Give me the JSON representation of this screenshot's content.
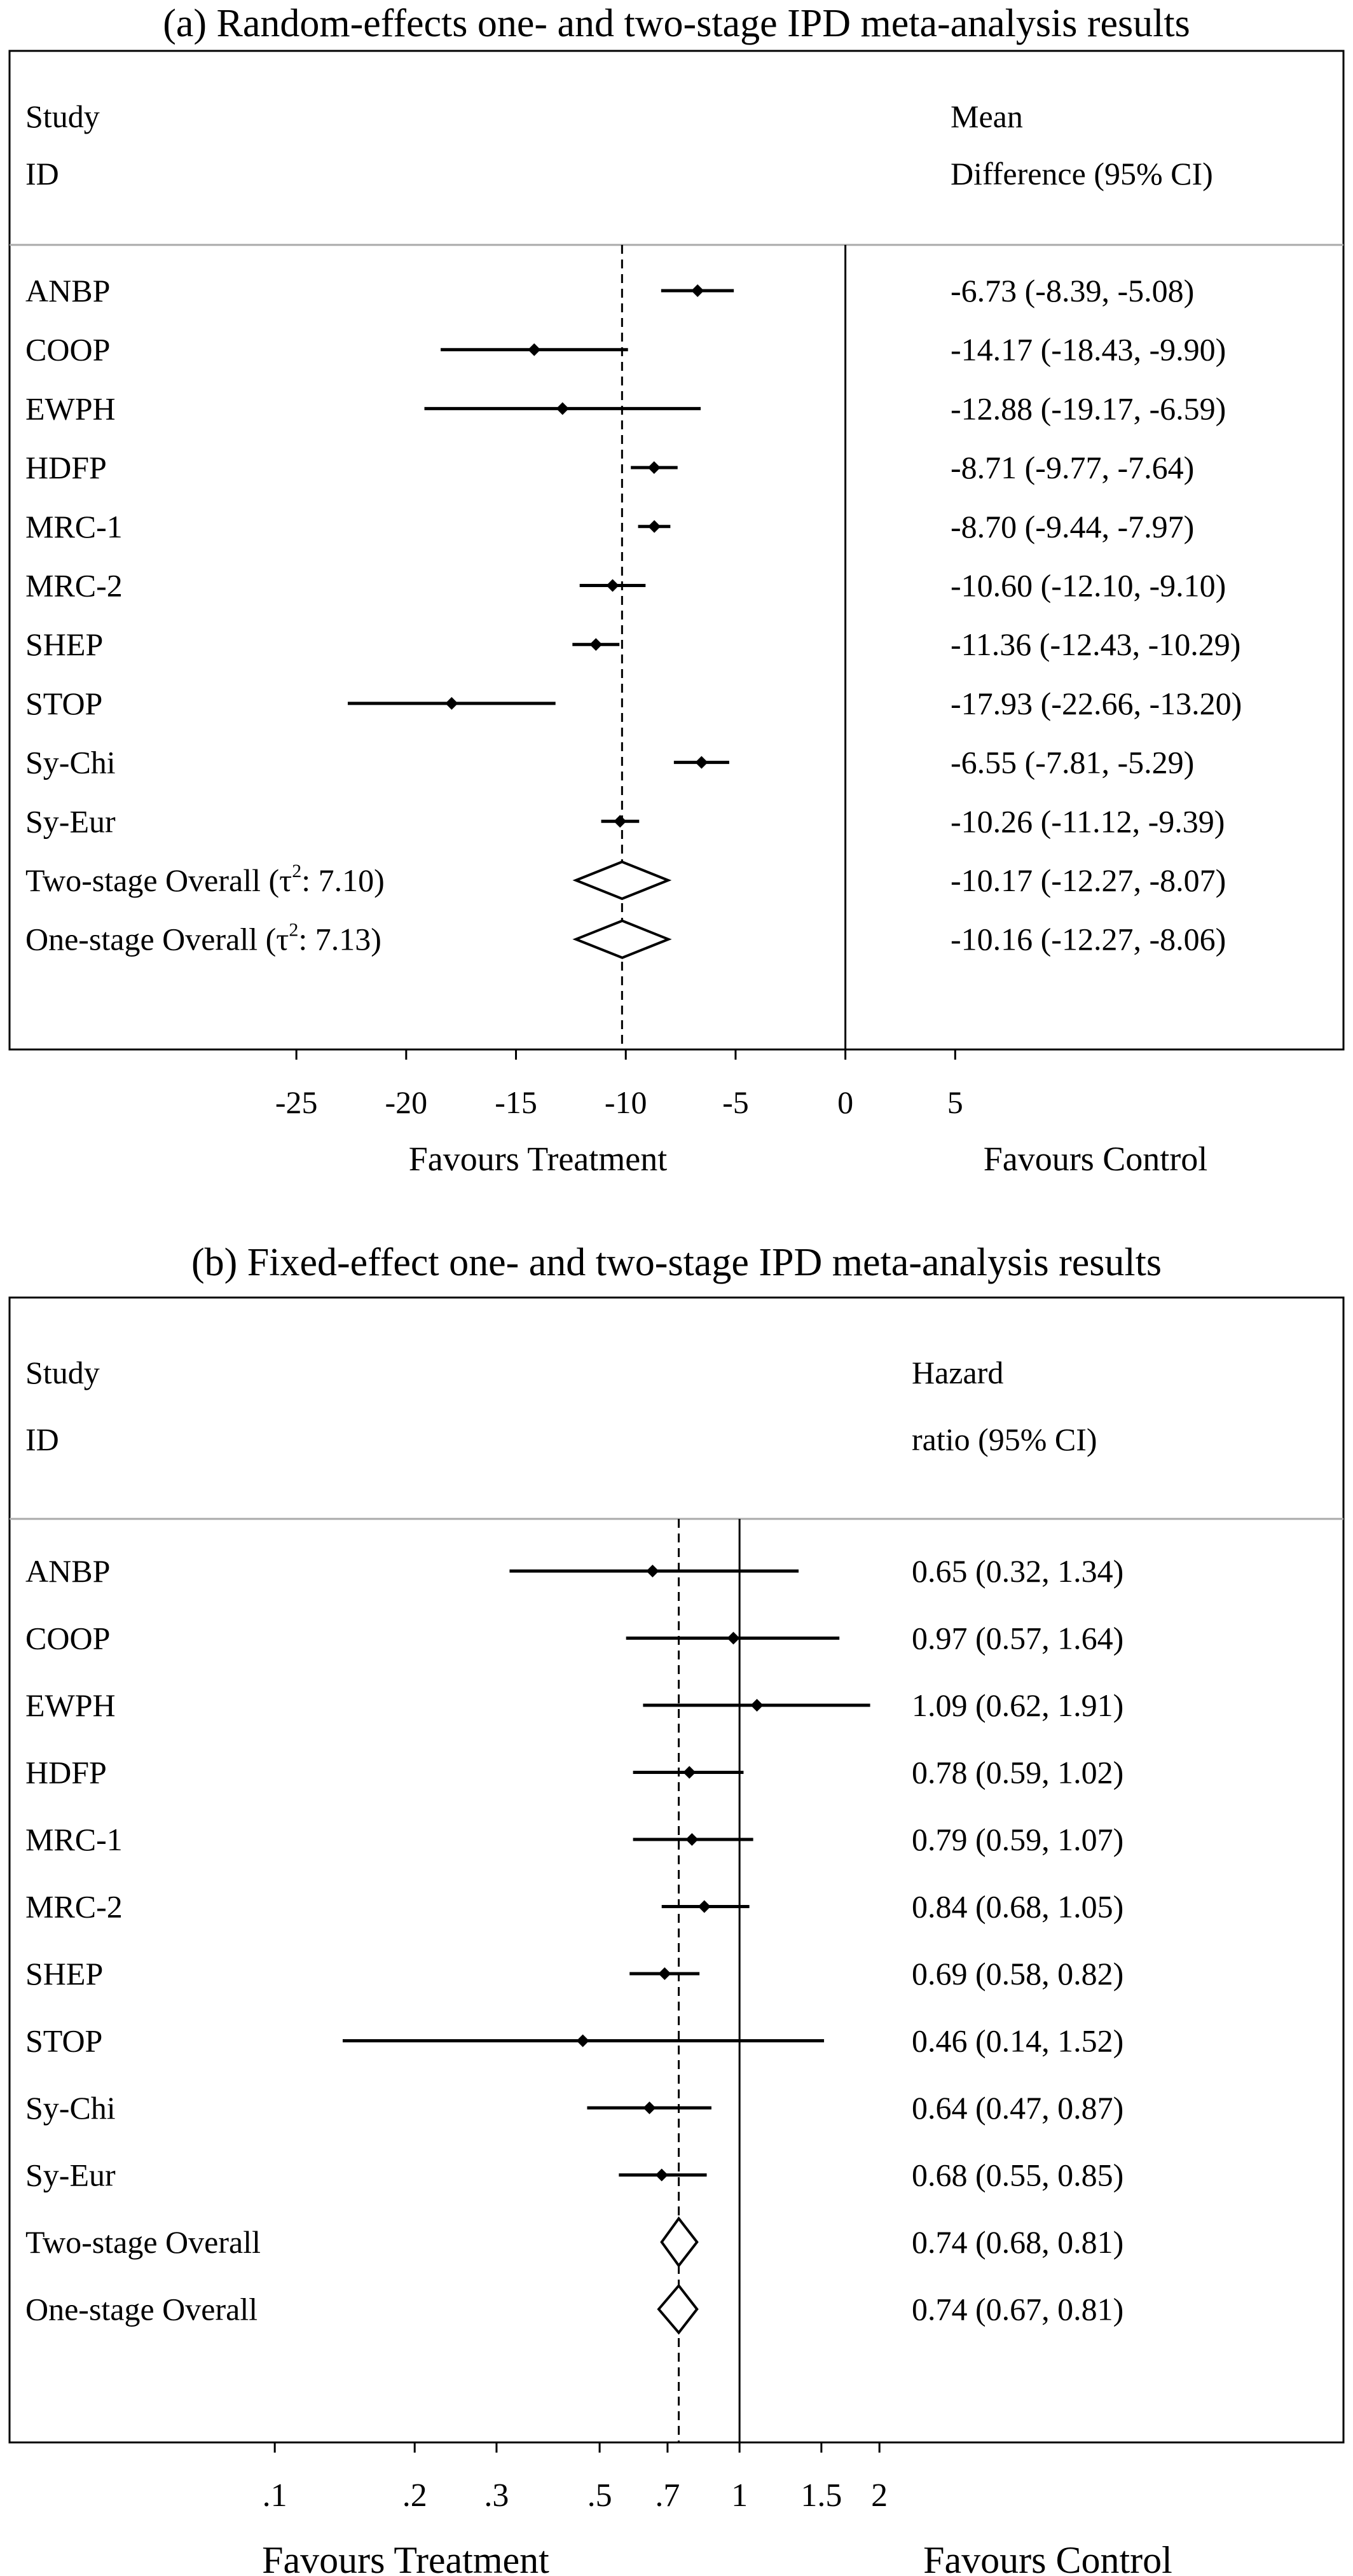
{
  "chart_data": [
    {
      "type": "forest",
      "title": "(a) Random-effects one- and two-stage IPD meta-analysis results",
      "header_left": [
        "Study",
        "ID"
      ],
      "header_right": [
        "Mean",
        "Difference (95% CI)"
      ],
      "scale": "linear",
      "xlim": [
        -29,
        10
      ],
      "xticks": [
        -25,
        -20,
        -15,
        -10,
        -5,
        0,
        5
      ],
      "xtick_labels": [
        "-25",
        "-20",
        "-15",
        "-10",
        "-5",
        "0",
        "5"
      ],
      "null_line": 0,
      "overall_line": -10.17,
      "xlabel_left": "Favours Treatment",
      "xlabel_right": "Favours Control",
      "rows": [
        {
          "label": "ANBP",
          "kind": "study",
          "est": -6.73,
          "lo": -8.39,
          "hi": -5.08,
          "text": "-6.73 (-8.39, -5.08)"
        },
        {
          "label": "COOP",
          "kind": "study",
          "est": -14.17,
          "lo": -18.43,
          "hi": -9.9,
          "text": "-14.17 (-18.43, -9.90)"
        },
        {
          "label": "EWPH",
          "kind": "study",
          "est": -12.88,
          "lo": -19.17,
          "hi": -6.59,
          "text": "-12.88 (-19.17, -6.59)"
        },
        {
          "label": "HDFP",
          "kind": "study",
          "est": -8.71,
          "lo": -9.77,
          "hi": -7.64,
          "text": "-8.71 (-9.77, -7.64)"
        },
        {
          "label": "MRC-1",
          "kind": "study",
          "est": -8.7,
          "lo": -9.44,
          "hi": -7.97,
          "text": "-8.70 (-9.44, -7.97)"
        },
        {
          "label": "MRC-2",
          "kind": "study",
          "est": -10.6,
          "lo": -12.1,
          "hi": -9.1,
          "text": "-10.60 (-12.10, -9.10)"
        },
        {
          "label": "SHEP",
          "kind": "study",
          "est": -11.36,
          "lo": -12.43,
          "hi": -10.29,
          "text": "-11.36 (-12.43, -10.29)"
        },
        {
          "label": "STOP",
          "kind": "study",
          "est": -17.93,
          "lo": -22.66,
          "hi": -13.2,
          "text": "-17.93 (-22.66, -13.20)"
        },
        {
          "label": "Sy-Chi",
          "kind": "study",
          "est": -6.55,
          "lo": -7.81,
          "hi": -5.29,
          "text": "-6.55 (-7.81, -5.29)"
        },
        {
          "label": "Sy-Eur",
          "kind": "study",
          "est": -10.26,
          "lo": -11.12,
          "hi": -9.39,
          "text": "-10.26 (-11.12, -9.39)"
        },
        {
          "label": "Two-stage Overall",
          "tau2": "7.10",
          "kind": "overall",
          "est": -10.17,
          "lo": -12.27,
          "hi": -8.07,
          "text": "-10.17 (-12.27, -8.07)"
        },
        {
          "label": "One-stage Overall",
          "tau2": "7.13",
          "kind": "overall",
          "est": -10.16,
          "lo": -12.27,
          "hi": -8.06,
          "text": "-10.16 (-12.27, -8.06)"
        }
      ]
    },
    {
      "type": "forest",
      "title": "(b) Fixed-effect one- and two-stage IPD meta-analysis results",
      "header_left": [
        "Study",
        "ID"
      ],
      "header_right": [
        "Hazard",
        "ratio (95% CI)"
      ],
      "scale": "log",
      "xlim": [
        0.06,
        2.8
      ],
      "xticks": [
        0.1,
        0.2,
        0.3,
        0.5,
        0.7,
        1,
        1.5,
        2
      ],
      "xtick_labels": [
        ".1",
        ".2",
        ".3",
        ".5",
        ".7",
        "1",
        "1.5",
        "2"
      ],
      "null_line": 1,
      "overall_line": 0.74,
      "xlabel_left": "Favours Treatment",
      "xlabel_right": "Favours Control",
      "rows": [
        {
          "label": "ANBP",
          "kind": "study",
          "est": 0.65,
          "lo": 0.32,
          "hi": 1.34,
          "text": "0.65 (0.32, 1.34)"
        },
        {
          "label": "COOP",
          "kind": "study",
          "est": 0.97,
          "lo": 0.57,
          "hi": 1.64,
          "text": "0.97 (0.57, 1.64)"
        },
        {
          "label": "EWPH",
          "kind": "study",
          "est": 1.09,
          "lo": 0.62,
          "hi": 1.91,
          "text": "1.09 (0.62, 1.91)"
        },
        {
          "label": "HDFP",
          "kind": "study",
          "est": 0.78,
          "lo": 0.59,
          "hi": 1.02,
          "text": "0.78 (0.59, 1.02)"
        },
        {
          "label": "MRC-1",
          "kind": "study",
          "est": 0.79,
          "lo": 0.59,
          "hi": 1.07,
          "text": "0.79 (0.59, 1.07)"
        },
        {
          "label": "MRC-2",
          "kind": "study",
          "est": 0.84,
          "lo": 0.68,
          "hi": 1.05,
          "text": "0.84 (0.68, 1.05)"
        },
        {
          "label": "SHEP",
          "kind": "study",
          "est": 0.69,
          "lo": 0.58,
          "hi": 0.82,
          "text": "0.69 (0.58, 0.82)"
        },
        {
          "label": "STOP",
          "kind": "study",
          "est": 0.46,
          "lo": 0.14,
          "hi": 1.52,
          "text": "0.46 (0.14, 1.52)"
        },
        {
          "label": "Sy-Chi",
          "kind": "study",
          "est": 0.64,
          "lo": 0.47,
          "hi": 0.87,
          "text": "0.64 (0.47, 0.87)"
        },
        {
          "label": "Sy-Eur",
          "kind": "study",
          "est": 0.68,
          "lo": 0.55,
          "hi": 0.85,
          "text": "0.68 (0.55, 0.85)"
        },
        {
          "label": "Two-stage Overall",
          "kind": "overall",
          "est": 0.74,
          "lo": 0.68,
          "hi": 0.81,
          "text": "0.74 (0.68, 0.81)"
        },
        {
          "label": "One-stage Overall",
          "kind": "overall",
          "est": 0.74,
          "lo": 0.67,
          "hi": 0.81,
          "text": "0.74 (0.67, 0.81)"
        }
      ]
    }
  ]
}
